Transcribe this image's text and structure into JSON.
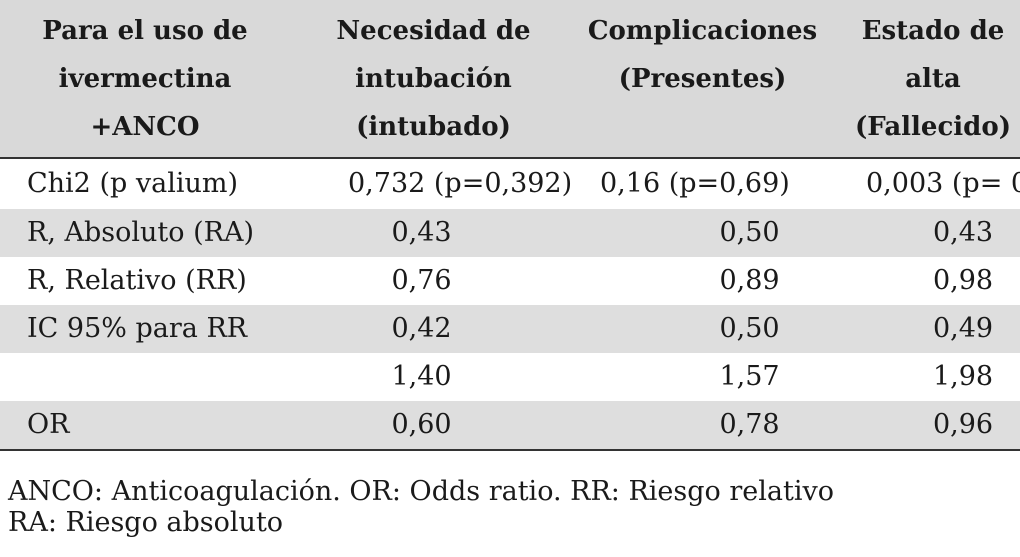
{
  "table": {
    "headers": [
      "Para el uso de ivermectina +ANCO",
      "Necesidad de intubación (intubado)",
      "Complicaciones (Presentes)",
      "Estado de alta (Fallecido)"
    ],
    "rows": [
      {
        "label": "Chi2 (p valium)",
        "values": [
          "0,732 (p=0,392)",
          "0,16 (p=0,69)",
          "0,003 (p= 0"
        ]
      },
      {
        "label": "R, Absoluto (RA)",
        "values": [
          "0,43",
          "0,50",
          "0,43"
        ]
      },
      {
        "label": "R, Relativo (RR)",
        "values": [
          "0,76",
          "0,89",
          "0,98"
        ]
      },
      {
        "label": "IC 95% para RR",
        "values": [
          "0,42",
          "0,50",
          "0,49"
        ]
      },
      {
        "label": "",
        "values": [
          "1,40",
          "1,57",
          "1,98"
        ]
      },
      {
        "label": "OR",
        "values": [
          "0,60",
          "0,78",
          "0,96"
        ]
      }
    ]
  },
  "footnote": {
    "line1": "ANCO: Anticoagulación. OR: Odds ratio. RR: Riesgo relativo",
    "line2": "RA: Riesgo absoluto"
  }
}
